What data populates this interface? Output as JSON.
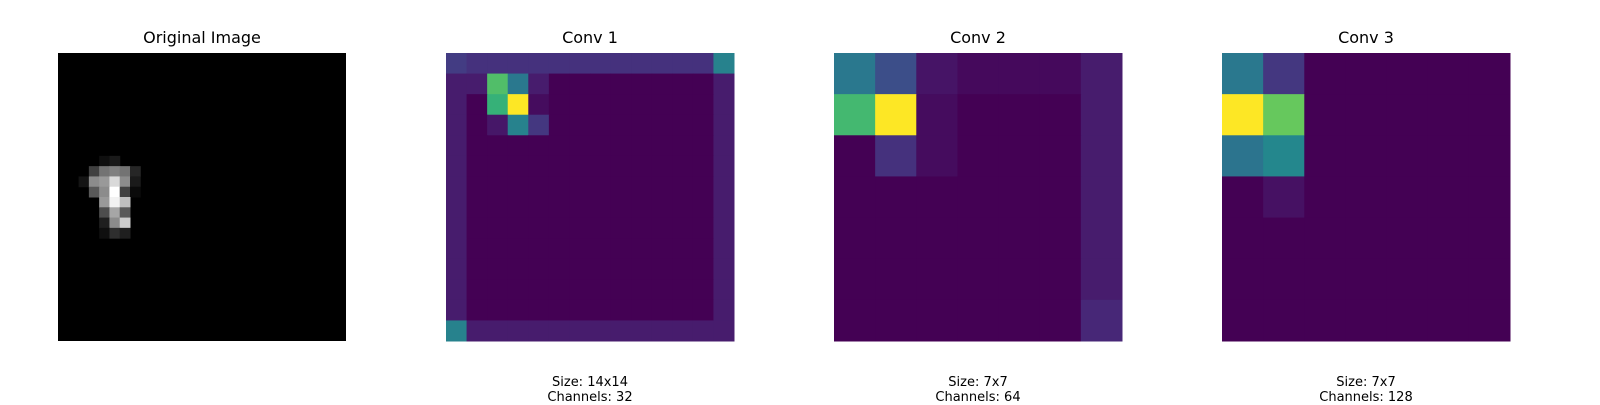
{
  "chart_data": [
    {
      "type": "heatmap",
      "title": "Original Image",
      "colormap": "gray",
      "rows": 28,
      "cols": 28,
      "cells": [
        [
          4,
          10,
          0.06
        ],
        [
          5,
          10,
          0.1
        ],
        [
          3,
          11,
          0.25
        ],
        [
          4,
          11,
          0.45
        ],
        [
          5,
          11,
          0.5
        ],
        [
          6,
          11,
          0.45
        ],
        [
          7,
          11,
          0.15
        ],
        [
          2,
          12,
          0.08
        ],
        [
          3,
          12,
          0.55
        ],
        [
          4,
          12,
          0.6
        ],
        [
          5,
          12,
          0.85
        ],
        [
          6,
          12,
          0.55
        ],
        [
          7,
          12,
          0.1
        ],
        [
          3,
          13,
          0.35
        ],
        [
          4,
          13,
          0.55
        ],
        [
          5,
          13,
          1.0
        ],
        [
          6,
          13,
          0.25
        ],
        [
          7,
          13,
          0.04
        ],
        [
          4,
          14,
          0.6
        ],
        [
          5,
          14,
          0.95
        ],
        [
          6,
          14,
          0.75
        ],
        [
          4,
          15,
          0.3
        ],
        [
          5,
          15,
          0.65
        ],
        [
          6,
          15,
          0.35
        ],
        [
          4,
          16,
          0.12
        ],
        [
          5,
          16,
          0.55
        ],
        [
          6,
          16,
          0.8
        ],
        [
          4,
          17,
          0.06
        ],
        [
          5,
          17,
          0.18
        ],
        [
          6,
          17,
          0.12
        ]
      ],
      "caption": []
    },
    {
      "type": "heatmap",
      "title": "Conv 1",
      "colormap": "viridis",
      "rows": 14,
      "cols": 14,
      "values": [
        [
          0.22,
          0.18,
          0.18,
          0.18,
          0.18,
          0.18,
          0.18,
          0.18,
          0.18,
          0.18,
          0.18,
          0.18,
          0.18,
          0.55
        ],
        [
          0.1,
          0.1,
          0.82,
          0.5,
          0.1,
          0.0,
          0.0,
          0.0,
          0.0,
          0.0,
          0.0,
          0.0,
          0.0,
          0.1
        ],
        [
          0.1,
          0.0,
          0.78,
          1.0,
          0.04,
          0.0,
          0.0,
          0.0,
          0.0,
          0.0,
          0.0,
          0.0,
          0.0,
          0.1
        ],
        [
          0.1,
          0.0,
          0.08,
          0.55,
          0.2,
          0.0,
          0.0,
          0.0,
          0.0,
          0.0,
          0.0,
          0.0,
          0.0,
          0.1
        ],
        [
          0.1,
          0.0,
          0.0,
          0.0,
          0.0,
          0.0,
          0.0,
          0.0,
          0.0,
          0.0,
          0.0,
          0.0,
          0.0,
          0.1
        ],
        [
          0.1,
          0.0,
          0.0,
          0.0,
          0.0,
          0.0,
          0.0,
          0.0,
          0.0,
          0.0,
          0.0,
          0.0,
          0.0,
          0.1
        ],
        [
          0.1,
          0.0,
          0.0,
          0.0,
          0.0,
          0.0,
          0.0,
          0.0,
          0.0,
          0.0,
          0.0,
          0.0,
          0.0,
          0.1
        ],
        [
          0.1,
          0.0,
          0.0,
          0.0,
          0.0,
          0.0,
          0.0,
          0.0,
          0.0,
          0.0,
          0.0,
          0.0,
          0.0,
          0.1
        ],
        [
          0.1,
          0.0,
          0.0,
          0.0,
          0.0,
          0.0,
          0.0,
          0.0,
          0.0,
          0.0,
          0.0,
          0.0,
          0.0,
          0.1
        ],
        [
          0.1,
          0.0,
          0.0,
          0.0,
          0.0,
          0.0,
          0.0,
          0.0,
          0.0,
          0.0,
          0.0,
          0.0,
          0.0,
          0.1
        ],
        [
          0.1,
          0.0,
          0.0,
          0.0,
          0.0,
          0.0,
          0.0,
          0.0,
          0.0,
          0.0,
          0.0,
          0.0,
          0.0,
          0.1
        ],
        [
          0.1,
          0.0,
          0.0,
          0.0,
          0.0,
          0.0,
          0.0,
          0.0,
          0.0,
          0.0,
          0.0,
          0.0,
          0.0,
          0.1
        ],
        [
          0.1,
          0.0,
          0.0,
          0.0,
          0.0,
          0.0,
          0.0,
          0.0,
          0.0,
          0.0,
          0.0,
          0.0,
          0.0,
          0.1
        ],
        [
          0.55,
          0.1,
          0.1,
          0.1,
          0.1,
          0.1,
          0.1,
          0.1,
          0.1,
          0.1,
          0.1,
          0.1,
          0.1,
          0.1
        ]
      ],
      "caption": [
        "Size: 14x14",
        "Channels: 32"
      ]
    },
    {
      "type": "heatmap",
      "title": "Conv 2",
      "colormap": "viridis",
      "rows": 7,
      "cols": 7,
      "values": [
        [
          0.5,
          0.3,
          0.07,
          0.03,
          0.03,
          0.03,
          0.1
        ],
        [
          0.8,
          1.0,
          0.04,
          0.0,
          0.0,
          0.0,
          0.1
        ],
        [
          0.0,
          0.18,
          0.04,
          0.0,
          0.0,
          0.0,
          0.1
        ],
        [
          0.0,
          0.0,
          0.0,
          0.0,
          0.0,
          0.0,
          0.1
        ],
        [
          0.0,
          0.0,
          0.0,
          0.0,
          0.0,
          0.0,
          0.1
        ],
        [
          0.0,
          0.0,
          0.0,
          0.0,
          0.0,
          0.0,
          0.1
        ],
        [
          0.0,
          0.0,
          0.0,
          0.0,
          0.0,
          0.0,
          0.14
        ]
      ],
      "caption": [
        "Size: 7x7",
        "Channels: 64"
      ]
    },
    {
      "type": "heatmap",
      "title": "Conv 3",
      "colormap": "viridis",
      "rows": 7,
      "cols": 7,
      "values": [
        [
          0.5,
          0.2,
          0.0,
          0.0,
          0.0,
          0.0,
          0.0
        ],
        [
          1.0,
          0.85,
          0.0,
          0.0,
          0.0,
          0.0,
          0.0
        ],
        [
          0.48,
          0.58,
          0.0,
          0.0,
          0.0,
          0.0,
          0.0
        ],
        [
          0.0,
          0.06,
          0.0,
          0.0,
          0.0,
          0.0,
          0.0
        ],
        [
          0.0,
          0.0,
          0.0,
          0.0,
          0.0,
          0.0,
          0.0
        ],
        [
          0.0,
          0.0,
          0.0,
          0.0,
          0.0,
          0.0,
          0.0
        ],
        [
          0.0,
          0.0,
          0.0,
          0.0,
          0.0,
          0.0,
          0.0
        ]
      ],
      "caption": [
        "Size: 7x7",
        "Channels: 128"
      ]
    }
  ]
}
